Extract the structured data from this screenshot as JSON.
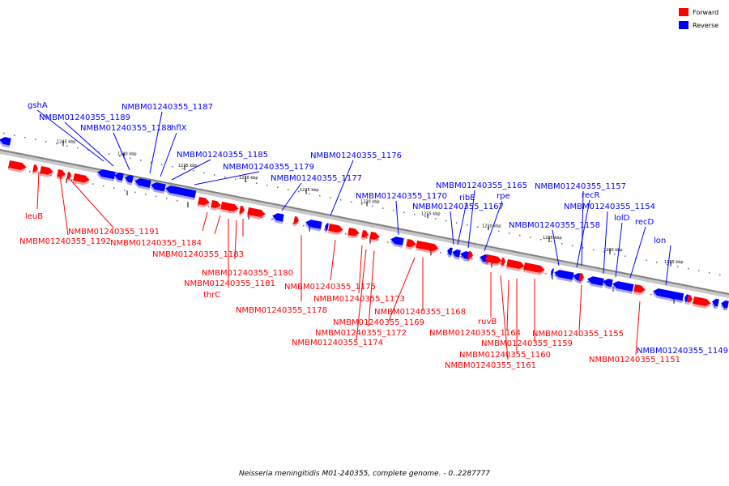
{
  "caption": "Neisseria meningitidis M01-240355, complete genome. - 0..2287777",
  "legend": [
    {
      "label": "Forward",
      "color": "#ff0000"
    },
    {
      "label": "Reverse",
      "color": "#0000ff"
    }
  ],
  "colors": {
    "forward": "#ff0000",
    "reverse": "#0000ff",
    "backbone": "#808080"
  },
  "ticks": [
    "1245 kbp",
    "1240 kbp",
    "1235 kbp",
    "1230 kbp",
    "1225 kbp",
    "1220 kbp",
    "1215 kbp",
    "1210 kbp",
    "1205 kbp",
    "1200 kbp",
    "1195 kbp"
  ],
  "reverse_labels": [
    "gshA",
    "NMBM01240355_1189",
    "NMBM01240355_1187",
    "NMBM01240355_1188",
    "hflX",
    "NMBM01240355_1185",
    "NMBM01240355_1179",
    "NMBM01240355_1177",
    "NMBM01240355_1176",
    "NMBM01240355_1170",
    "ribE",
    "NMBM01240355_1165",
    "NMBM01240355_1167",
    "rpe",
    "NMBM01240355_1157",
    "recR",
    "NMBM01240355_1154",
    "NMBM01240355_1158",
    "lolD",
    "recD",
    "lon",
    "NMBM01240355_1149"
  ],
  "forward_labels": [
    "leuB",
    "NMBM01240355_1191",
    "NMBM01240355_1192",
    "NMBM01240355_1184",
    "NMBM01240355_1183",
    "NMBM01240355_1180",
    "NMBM01240355_1181",
    "thrC",
    "NMBM01240355_1178",
    "NMBM01240355_1175",
    "NMBM01240355_1173",
    "NMBM01240355_1168",
    "NMBM01240355_1169",
    "NMBM01240355_1172",
    "NMBM01240355_1174",
    "ruvB",
    "NMBM01240355_1164",
    "NMBM01240355_1155",
    "NMBM01240355_1159",
    "NMBM01240355_1160",
    "NMBM01240355_1161",
    "NMBM01240355_1151"
  ]
}
